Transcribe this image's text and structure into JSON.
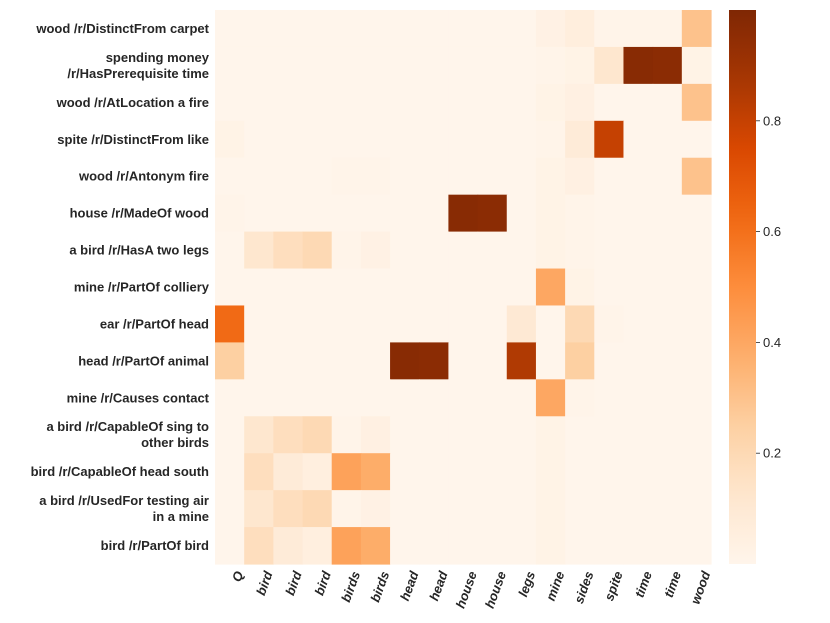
{
  "chart_data": {
    "type": "heatmap",
    "colormap": "Oranges",
    "vmin": 0,
    "vmax": 1,
    "colorbar_ticks": [
      "0.2",
      "0.4",
      "0.6",
      "0.8"
    ],
    "colorbar_tick_values": [
      0.2,
      0.4,
      0.6,
      0.8
    ],
    "columns": [
      "Q",
      "bird",
      "bird",
      "bird",
      "birds",
      "birds",
      "head",
      "head",
      "house",
      "house",
      "legs",
      "mine",
      "sides",
      "spite",
      "time",
      "time",
      "wood"
    ],
    "rows": [
      [
        "wood /r/DistinctFrom carpet"
      ],
      [
        "spending money",
        "/r/HasPrerequisite time"
      ],
      [
        "wood /r/AtLocation a fire"
      ],
      [
        "spite /r/DistinctFrom like"
      ],
      [
        "wood /r/Antonym fire"
      ],
      [
        "house /r/MadeOf wood"
      ],
      [
        "a bird /r/HasA two legs"
      ],
      [
        "mine /r/PartOf colliery"
      ],
      [
        "ear /r/PartOf head"
      ],
      [
        "head /r/PartOf animal"
      ],
      [
        "mine /r/Causes contact"
      ],
      [
        "a bird /r/CapableOf sing to",
        "other birds"
      ],
      [
        "bird /r/CapableOf head south"
      ],
      [
        "a bird /r/UsedFor testing air",
        "in a mine"
      ],
      [
        "bird /r/PartOf bird"
      ]
    ],
    "values": [
      [
        0,
        0,
        0,
        0,
        0,
        0,
        0,
        0,
        0,
        0,
        0,
        0.03,
        0.06,
        0.01,
        0.01,
        0.01,
        0.3
      ],
      [
        0,
        0,
        0,
        0,
        0,
        0,
        0,
        0,
        0,
        0,
        0,
        0.01,
        0.02,
        0.12,
        0.97,
        0.96,
        0.02
      ],
      [
        0,
        0,
        0,
        0,
        0,
        0,
        0,
        0,
        0,
        0,
        0,
        0.02,
        0.04,
        0,
        0,
        0,
        0.3
      ],
      [
        0.02,
        0,
        0,
        0,
        0,
        0,
        0,
        0,
        0,
        0,
        0,
        0.01,
        0.08,
        0.8,
        0,
        0,
        0
      ],
      [
        0,
        0,
        0,
        0,
        0.01,
        0.01,
        0,
        0,
        0,
        0,
        0,
        0.02,
        0.04,
        0,
        0,
        0,
        0.3
      ],
      [
        0.01,
        0,
        0,
        0,
        0,
        0,
        0,
        0,
        0.97,
        0.96,
        0,
        0.02,
        0.01,
        0,
        0,
        0,
        0
      ],
      [
        0,
        0.12,
        0.17,
        0.2,
        0.01,
        0.03,
        0,
        0,
        0,
        0,
        0,
        0.02,
        0.01,
        0,
        0,
        0,
        0
      ],
      [
        0,
        0,
        0,
        0,
        0,
        0,
        0,
        0,
        0,
        0,
        0,
        0.4,
        0.02,
        0,
        0,
        0,
        0
      ],
      [
        0.62,
        0,
        0,
        0,
        0,
        0,
        0,
        0,
        0,
        0,
        0.1,
        0,
        0.2,
        0.01,
        0,
        0,
        0
      ],
      [
        0.25,
        0,
        0,
        0,
        0,
        0,
        0.97,
        0.96,
        0,
        0,
        0.85,
        0,
        0.25,
        0,
        0,
        0,
        0
      ],
      [
        0,
        0,
        0,
        0,
        0,
        0,
        0,
        0,
        0,
        0,
        0,
        0.4,
        0.01,
        0,
        0,
        0,
        0
      ],
      [
        0,
        0.12,
        0.17,
        0.2,
        0.01,
        0.04,
        0,
        0,
        0,
        0,
        0,
        0.02,
        0,
        0,
        0,
        0,
        0
      ],
      [
        0,
        0.17,
        0.08,
        0.05,
        0.42,
        0.38,
        0,
        0,
        0,
        0,
        0,
        0.02,
        0,
        0,
        0,
        0,
        0
      ],
      [
        0,
        0.12,
        0.17,
        0.2,
        0.01,
        0.03,
        0,
        0,
        0,
        0,
        0,
        0.02,
        0,
        0,
        0,
        0,
        0
      ],
      [
        0,
        0.17,
        0.08,
        0.05,
        0.42,
        0.38,
        0,
        0,
        0,
        0,
        0,
        0.02,
        0,
        0,
        0,
        0,
        0
      ]
    ]
  }
}
